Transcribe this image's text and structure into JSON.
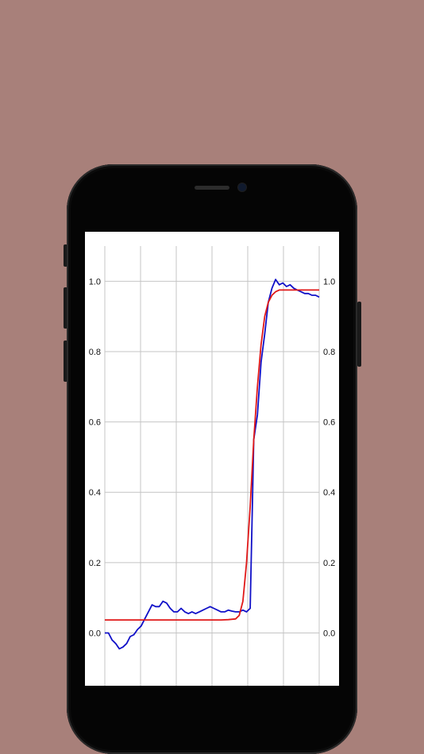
{
  "colors": {
    "background": "#a8807a",
    "phone": "#050505",
    "screen": "#ffffff",
    "grid": "#c4c4c4",
    "series_measured": "#1010c8",
    "series_fit": "#e01818"
  },
  "chart_data": {
    "type": "line",
    "title": "",
    "xlabel": "",
    "ylabel": "",
    "xlim": [
      0,
      59
    ],
    "ylim": [
      -0.15,
      1.1
    ],
    "yticks": [
      0.0,
      0.2,
      0.4,
      0.6,
      0.8,
      1.0
    ],
    "ytick_labels": [
      "0.0",
      "0.2",
      "0.4",
      "0.6",
      "0.8",
      "1.0"
    ],
    "y_axis_sides": [
      "left",
      "right"
    ],
    "x_gridlines": 7,
    "grid": true,
    "legend": "none",
    "series": [
      {
        "color": "#1010c8",
        "x": [
          0,
          1,
          2,
          3,
          4,
          5,
          6,
          7,
          8,
          9,
          10,
          11,
          12,
          13,
          14,
          15,
          16,
          17,
          18,
          19,
          20,
          21,
          22,
          23,
          24,
          25,
          26,
          27,
          28,
          29,
          30,
          31,
          32,
          33,
          34,
          35,
          36,
          37,
          38,
          39,
          40,
          41,
          42,
          43,
          44,
          45,
          46,
          47,
          48,
          49,
          50,
          51,
          52,
          53,
          54,
          55,
          56,
          57,
          58,
          59
        ],
        "y": [
          0.0,
          0.0,
          -0.02,
          -0.03,
          -0.045,
          -0.04,
          -0.03,
          -0.01,
          -0.005,
          0.01,
          0.02,
          0.04,
          0.06,
          0.08,
          0.075,
          0.075,
          0.09,
          0.085,
          0.07,
          0.06,
          0.06,
          0.07,
          0.06,
          0.055,
          0.06,
          0.055,
          0.06,
          0.065,
          0.07,
          0.075,
          0.07,
          0.065,
          0.06,
          0.06,
          0.065,
          0.062,
          0.06,
          0.06,
          0.065,
          0.06,
          0.07,
          0.55,
          0.62,
          0.77,
          0.85,
          0.94,
          0.98,
          1.005,
          0.99,
          0.995,
          0.985,
          0.99,
          0.98,
          0.975,
          0.97,
          0.965,
          0.965,
          0.96,
          0.96,
          0.955
        ]
      },
      {
        "color": "#e01818",
        "x": [
          0,
          5,
          10,
          15,
          20,
          25,
          30,
          32,
          34,
          36,
          37,
          38,
          39,
          40,
          41,
          42,
          43,
          44,
          45,
          46,
          47,
          48,
          50,
          55,
          59
        ],
        "y": [
          0.037,
          0.037,
          0.037,
          0.037,
          0.037,
          0.037,
          0.037,
          0.037,
          0.038,
          0.04,
          0.05,
          0.09,
          0.2,
          0.36,
          0.55,
          0.7,
          0.82,
          0.9,
          0.94,
          0.96,
          0.97,
          0.975,
          0.975,
          0.975,
          0.975
        ]
      }
    ]
  }
}
